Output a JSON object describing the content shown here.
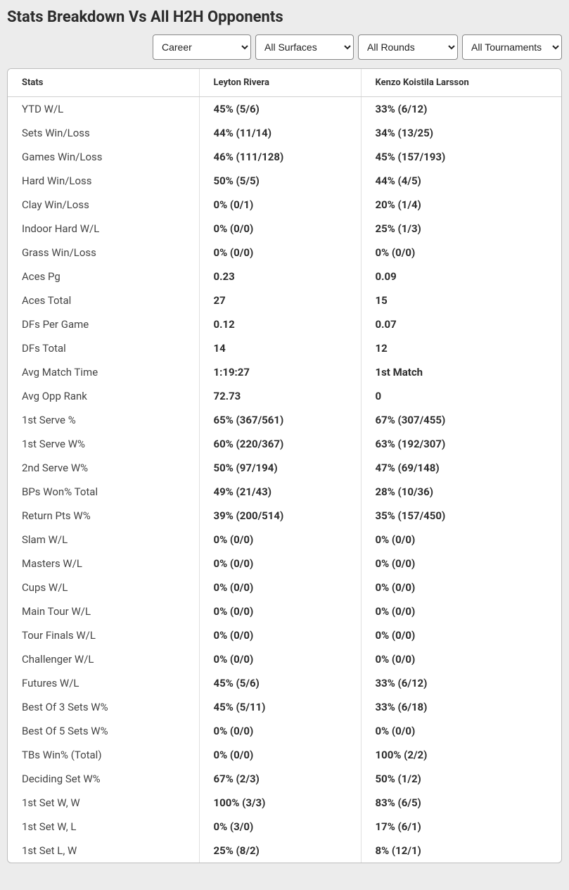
{
  "header": {
    "title": "Stats Breakdown Vs All H2H Opponents"
  },
  "filters": {
    "period": {
      "selected": "Career",
      "options": [
        "Career"
      ]
    },
    "surface": {
      "selected": "All Surfaces",
      "options": [
        "All Surfaces"
      ]
    },
    "round": {
      "selected": "All Rounds",
      "options": [
        "All Rounds"
      ]
    },
    "tournament": {
      "selected": "All Tournaments",
      "options": [
        "All Tournaments"
      ]
    }
  },
  "table": {
    "columns": {
      "stats": "Stats",
      "player1": "Leyton Rivera",
      "player2": "Kenzo Koistila Larsson"
    },
    "rows": [
      {
        "label": "YTD W/L",
        "p1": "45% (5/6)",
        "p2": "33% (6/12)"
      },
      {
        "label": "Sets Win/Loss",
        "p1": "44% (11/14)",
        "p2": "34% (13/25)"
      },
      {
        "label": "Games Win/Loss",
        "p1": "46% (111/128)",
        "p2": "45% (157/193)"
      },
      {
        "label": "Hard Win/Loss",
        "p1": "50% (5/5)",
        "p2": "44% (4/5)"
      },
      {
        "label": "Clay Win/Loss",
        "p1": "0% (0/1)",
        "p2": "20% (1/4)"
      },
      {
        "label": "Indoor Hard W/L",
        "p1": "0% (0/0)",
        "p2": "25% (1/3)"
      },
      {
        "label": "Grass Win/Loss",
        "p1": "0% (0/0)",
        "p2": "0% (0/0)"
      },
      {
        "label": "Aces Pg",
        "p1": "0.23",
        "p2": "0.09"
      },
      {
        "label": "Aces Total",
        "p1": "27",
        "p2": "15"
      },
      {
        "label": "DFs Per Game",
        "p1": "0.12",
        "p2": "0.07"
      },
      {
        "label": "DFs Total",
        "p1": "14",
        "p2": "12"
      },
      {
        "label": "Avg Match Time",
        "p1": "1:19:27",
        "p2": "1st Match"
      },
      {
        "label": "Avg Opp Rank",
        "p1": "72.73",
        "p2": "0"
      },
      {
        "label": "1st Serve %",
        "p1": "65% (367/561)",
        "p2": "67% (307/455)"
      },
      {
        "label": "1st Serve W%",
        "p1": "60% (220/367)",
        "p2": "63% (192/307)"
      },
      {
        "label": "2nd Serve W%",
        "p1": "50% (97/194)",
        "p2": "47% (69/148)"
      },
      {
        "label": "BPs Won% Total",
        "p1": "49% (21/43)",
        "p2": "28% (10/36)"
      },
      {
        "label": "Return Pts W%",
        "p1": "39% (200/514)",
        "p2": "35% (157/450)"
      },
      {
        "label": "Slam W/L",
        "p1": "0% (0/0)",
        "p2": "0% (0/0)"
      },
      {
        "label": "Masters W/L",
        "p1": "0% (0/0)",
        "p2": "0% (0/0)"
      },
      {
        "label": "Cups W/L",
        "p1": "0% (0/0)",
        "p2": "0% (0/0)"
      },
      {
        "label": "Main Tour W/L",
        "p1": "0% (0/0)",
        "p2": "0% (0/0)"
      },
      {
        "label": "Tour Finals W/L",
        "p1": "0% (0/0)",
        "p2": "0% (0/0)"
      },
      {
        "label": "Challenger W/L",
        "p1": "0% (0/0)",
        "p2": "0% (0/0)"
      },
      {
        "label": "Futures W/L",
        "p1": "45% (5/6)",
        "p2": "33% (6/12)"
      },
      {
        "label": "Best Of 3 Sets W%",
        "p1": "45% (5/11)",
        "p2": "33% (6/18)"
      },
      {
        "label": "Best Of 5 Sets W%",
        "p1": "0% (0/0)",
        "p2": "0% (0/0)"
      },
      {
        "label": "TBs Win% (Total)",
        "p1": "0% (0/0)",
        "p2": "100% (2/2)"
      },
      {
        "label": "Deciding Set W%",
        "p1": "67% (2/3)",
        "p2": "50% (1/2)"
      },
      {
        "label": "1st Set W, W",
        "p1": "100% (3/3)",
        "p2": "83% (6/5)"
      },
      {
        "label": "1st Set W, L",
        "p1": "0% (3/0)",
        "p2": "17% (6/1)"
      },
      {
        "label": "1st Set L, W",
        "p1": "25% (8/2)",
        "p2": "8% (12/1)"
      }
    ]
  },
  "styles": {
    "background": "#ececec",
    "table_border": "#bdbdbd",
    "header_border": "#cfcfcf",
    "col_divider": "#e0e0e0",
    "title_fontsize": 22,
    "th_fontsize": 13,
    "td_fontsize": 15
  }
}
